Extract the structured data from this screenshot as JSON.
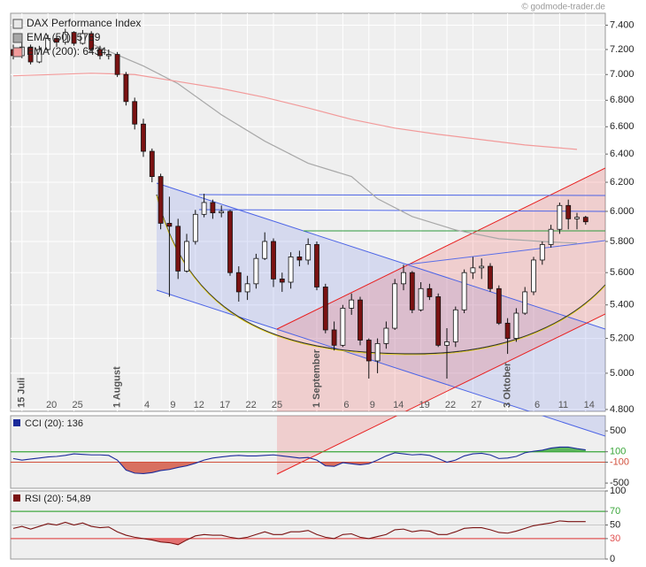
{
  "chart_data": [
    {
      "type": "candlestick",
      "title": "DAX Performance Index",
      "source": "© godmode-trader.de",
      "log_scale": true,
      "grid": true,
      "up_color": "#ffffff",
      "down_color": "#7a1212",
      "legend": "top-left",
      "categories": [
        null,
        "15 Juli",
        null,
        null,
        "20",
        null,
        null,
        "25",
        null,
        null,
        null,
        null,
        "1 August",
        null,
        null,
        "4",
        null,
        null,
        "9",
        null,
        null,
        "12",
        null,
        null,
        "17",
        null,
        null,
        "22",
        null,
        null,
        "25",
        null,
        null,
        null,
        null,
        "1 September",
        null,
        null,
        "6",
        null,
        null,
        "9",
        null,
        null,
        "14",
        null,
        null,
        "19",
        null,
        null,
        "22",
        null,
        null,
        "27",
        null,
        null,
        null,
        "3 Oktober",
        null,
        null,
        "6",
        null,
        null,
        "11",
        null,
        null,
        "14"
      ],
      "open": [
        7200,
        7150,
        7220,
        7100,
        7200,
        7290,
        7260,
        7340,
        7250,
        7330,
        7200,
        7150,
        7160,
        7000,
        6790,
        6620,
        6420,
        6240,
        5920,
        5900,
        5610,
        5800,
        5980,
        6060,
        5990,
        6000,
        5600,
        5480,
        5530,
        5690,
        5800,
        5560,
        5540,
        5700,
        5680,
        5780,
        5510,
        5250,
        5160,
        5380,
        5430,
        5190,
        5070,
        5170,
        5260,
        5530,
        5600,
        5370,
        5500,
        5450,
        5160,
        5180,
        5370,
        5600,
        5630,
        5640,
        5500,
        5290,
        5200,
        5350,
        5480,
        5680,
        5780,
        5880,
        6040,
        5950,
        5960
      ],
      "high": [
        7240,
        7260,
        7240,
        7230,
        7320,
        7310,
        7370,
        7350,
        7360,
        7350,
        7230,
        7200,
        7180,
        7020,
        6820,
        6660,
        6440,
        6260,
        6100,
        5950,
        5850,
        6010,
        6120,
        6080,
        6040,
        6010,
        5640,
        5580,
        5720,
        5860,
        5820,
        5600,
        5730,
        5740,
        5820,
        5800,
        5530,
        5300,
        5400,
        5470,
        5450,
        5200,
        5200,
        5300,
        5560,
        5650,
        5610,
        5540,
        5530,
        5470,
        5260,
        5390,
        5620,
        5700,
        5690,
        5660,
        5520,
        5320,
        5380,
        5510,
        5700,
        5800,
        5910,
        6060,
        6080,
        5990,
        5970
      ],
      "low": [
        7120,
        7130,
        7080,
        7090,
        7190,
        7220,
        7240,
        7230,
        7240,
        7180,
        7120,
        7120,
        6980,
        6760,
        6580,
        6380,
        6200,
        5880,
        5450,
        5560,
        5600,
        5780,
        5960,
        5950,
        5960,
        5580,
        5420,
        5430,
        5500,
        5680,
        5510,
        5480,
        5500,
        5640,
        5650,
        5490,
        5230,
        5130,
        5150,
        5340,
        5160,
        4970,
        5000,
        5140,
        5250,
        5490,
        5350,
        5360,
        5430,
        5150,
        4970,
        5150,
        5350,
        5560,
        5560,
        5480,
        5280,
        5110,
        5180,
        5340,
        5460,
        5650,
        5760,
        5850,
        5880,
        5880,
        5910
      ],
      "close": [
        7150,
        7220,
        7100,
        7200,
        7290,
        7260,
        7340,
        7250,
        7330,
        7200,
        7150,
        7160,
        7000,
        6790,
        6620,
        6420,
        6240,
        5920,
        5900,
        5610,
        5800,
        5980,
        6060,
        5990,
        6000,
        5600,
        5480,
        5530,
        5690,
        5800,
        5560,
        5540,
        5700,
        5680,
        5780,
        5510,
        5250,
        5160,
        5380,
        5430,
        5190,
        5070,
        5170,
        5260,
        5530,
        5600,
        5370,
        5500,
        5450,
        5160,
        5180,
        5370,
        5600,
        5630,
        5640,
        5500,
        5290,
        5200,
        5350,
        5480,
        5680,
        5780,
        5880,
        6040,
        5950,
        5960,
        5930
      ],
      "series": [
        {
          "name": "EMA (50): 5789",
          "color": "#a8a8a8",
          "x": [
            9,
            15,
            19,
            24,
            29,
            34,
            39,
            42,
            46,
            51,
            56,
            61,
            65
          ],
          "values": [
            7246,
            7068,
            6928,
            6690,
            6494,
            6334,
            6240,
            6086,
            5965,
            5876,
            5818,
            5800,
            5789
          ]
        },
        {
          "name": "EMA (200): 6434",
          "color": "#f29a9a",
          "x": [
            0,
            9,
            14,
            19,
            24,
            29,
            34,
            39,
            44,
            49,
            54,
            59,
            65
          ],
          "values": [
            6990,
            7010,
            7000,
            6945,
            6890,
            6822,
            6741,
            6655,
            6590,
            6544,
            6505,
            6466,
            6434
          ]
        }
      ],
      "ylim": [
        4790,
        7500
      ],
      "yticks": [
        {
          "value": 7400,
          "label": "7.400"
        },
        {
          "value": 7200,
          "label": "7.200"
        },
        {
          "value": 7000,
          "label": "7.000"
        },
        {
          "value": 6800,
          "label": "6.800"
        },
        {
          "value": 6600,
          "label": "6.600"
        },
        {
          "value": 6400,
          "label": "6.400"
        },
        {
          "value": 6200,
          "label": "6.200"
        },
        {
          "value": 6000,
          "label": "6.000"
        },
        {
          "value": 5800,
          "label": "5.800"
        },
        {
          "value": 5600,
          "label": "5.600"
        },
        {
          "value": 5400,
          "label": "5.400"
        },
        {
          "value": 5200,
          "label": "5.200"
        },
        {
          "value": 5000,
          "label": "5.000"
        },
        {
          "value": 4800,
          "label": "4.800"
        }
      ]
    },
    {
      "type": "line",
      "name": "CCI (20): 136",
      "color": "#1a2a9a",
      "values": [
        -30,
        -60,
        -40,
        -20,
        0,
        10,
        30,
        60,
        50,
        40,
        40,
        30,
        -60,
        -250,
        -310,
        -320,
        -300,
        -260,
        -240,
        -200,
        -170,
        -120,
        -60,
        -20,
        0,
        20,
        30,
        20,
        20,
        30,
        40,
        20,
        0,
        -20,
        -10,
        -60,
        -170,
        -180,
        -110,
        -130,
        -150,
        -130,
        -60,
        20,
        80,
        60,
        40,
        50,
        30,
        -30,
        -100,
        -60,
        20,
        60,
        70,
        40,
        -30,
        -20,
        10,
        80,
        110,
        130,
        170,
        190,
        190,
        160,
        136
      ],
      "ylim": [
        -600,
        790
      ],
      "yticks": [
        500,
        100,
        -100,
        -500
      ],
      "upper_level": 100,
      "upper_color": "#3aa63a",
      "lower_level": -100,
      "lower_color": "#d2503c"
    },
    {
      "type": "line",
      "name": "RSI (20): 54,89",
      "color": "#7a1212",
      "values": [
        45,
        48,
        44,
        48,
        52,
        50,
        54,
        50,
        53,
        48,
        46,
        47,
        40,
        35,
        32,
        30,
        28,
        25,
        24,
        21,
        28,
        34,
        36,
        35,
        35,
        32,
        30,
        32,
        36,
        40,
        36,
        36,
        40,
        40,
        42,
        36,
        32,
        30,
        36,
        37,
        32,
        30,
        33,
        36,
        43,
        44,
        40,
        42,
        41,
        36,
        36,
        40,
        45,
        46,
        46,
        43,
        39,
        38,
        41,
        45,
        49,
        51,
        53,
        56,
        55,
        55,
        54.89
      ],
      "ylim": [
        0,
        100
      ],
      "yticks": [
        100,
        70,
        50,
        30,
        0
      ],
      "upper_level": 70,
      "upper_color": "#3aa63a",
      "lower_level": 30,
      "lower_color": "#e05050",
      "mid_level": 50
    }
  ]
}
